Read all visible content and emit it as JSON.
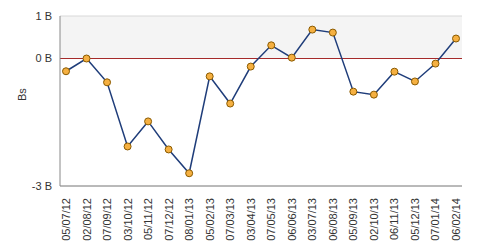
{
  "chart_data": {
    "type": "line",
    "y_label": "Bs",
    "categories": [
      "05/07/12",
      "02/08/12",
      "07/09/12",
      "03/10/12",
      "05/11/12",
      "07/12/12",
      "08/01/13",
      "05/02/13",
      "07/03/13",
      "03/04/13",
      "07/05/13",
      "06/06/13",
      "03/07/13",
      "06/08/13",
      "05/09/13",
      "02/10/13",
      "06/11/13",
      "05/12/13",
      "07/01/14",
      "06/02/14"
    ],
    "values": [
      -0.3,
      0,
      -0.56,
      -2.07,
      -1.48,
      -2.14,
      -2.7,
      -0.42,
      -1.06,
      -0.19,
      0.31,
      0.02,
      0.68,
      0.61,
      -0.78,
      -0.85,
      -0.31,
      -0.54,
      -0.12,
      0.47
    ],
    "color": "#1f3d7a",
    "marker": "circle",
    "ylim": [
      -3,
      1
    ],
    "yticks": [
      {
        "value": 1,
        "label": "1 B"
      },
      {
        "value": 0,
        "label": "0 B"
      },
      {
        "value": -3,
        "label": "-3 B"
      }
    ],
    "grid": true
  }
}
